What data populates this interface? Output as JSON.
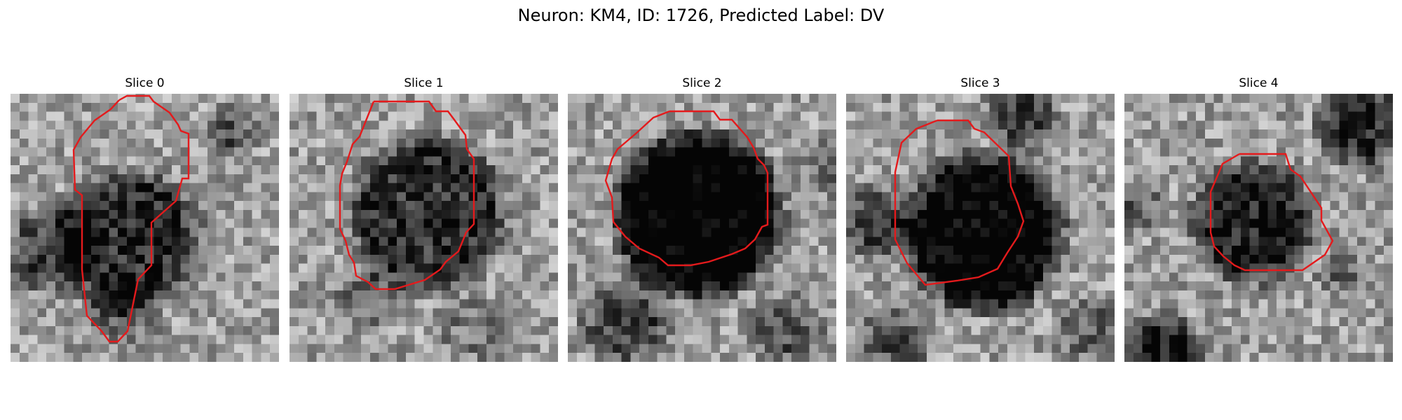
{
  "figure": {
    "title": "Neuron: KM4, ID: 1726, Predicted Label: DV"
  },
  "colors": {
    "contour": "#e41a1c",
    "colormap": "gray"
  },
  "panels": [
    {
      "title": "Slice 0"
    },
    {
      "title": "Slice 1"
    },
    {
      "title": "Slice 2"
    },
    {
      "title": "Slice 3"
    },
    {
      "title": "Slice 4"
    }
  ]
}
